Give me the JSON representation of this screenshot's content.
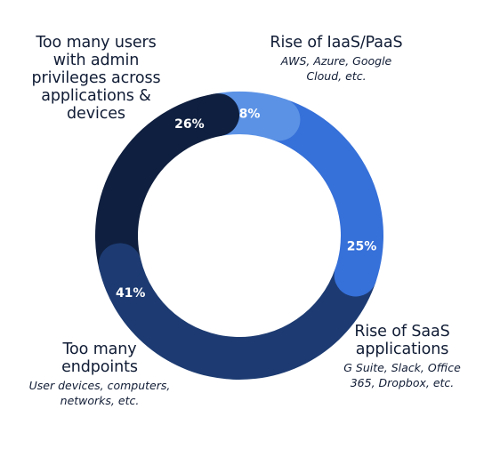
{
  "chart_data": {
    "type": "donut",
    "start_angle_deg": -10,
    "segments": [
      {
        "key": "iaas",
        "label": "Rise of IaaS/PaaS",
        "sublabel": "AWS, Azure, Google\nCloud, etc.",
        "value": 8,
        "value_label": "8%",
        "color": "#5b92e5"
      },
      {
        "key": "saas",
        "label": "Rise of SaaS\napplications",
        "sublabel": "G Suite, Slack, Office\n365, Dropbox, etc.",
        "value": 25,
        "value_label": "25%",
        "color": "#3670d9"
      },
      {
        "key": "endpoints",
        "label": "Too many\nendpoints",
        "sublabel": "User devices, computers,\nnetworks, etc.",
        "value": 41,
        "value_label": "41%",
        "color": "#1d3b72"
      },
      {
        "key": "admin",
        "label": "Too many users\nwith admin\nprivileges across\napplications &\ndevices",
        "sublabel": "",
        "value": 26,
        "value_label": "26%",
        "color": "#0f1f3f"
      }
    ]
  }
}
